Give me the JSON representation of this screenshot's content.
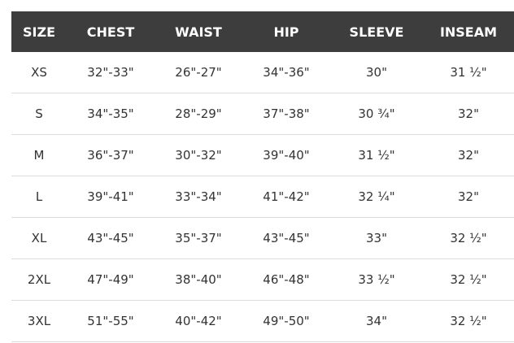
{
  "table": {
    "header": [
      "SIZE",
      "CHEST",
      "WAIST",
      "HIP",
      "SLEEVE",
      "INSEAM"
    ],
    "rows": [
      [
        "XS",
        "32\"-33\"",
        "26\"-27\"",
        "34\"-36\"",
        "30\"",
        "31 ½\""
      ],
      [
        "S",
        "34\"-35\"",
        "28\"-29\"",
        "37\"-38\"",
        "30 ¾\"",
        "32\""
      ],
      [
        "M",
        "36\"-37\"",
        "30\"-32\"",
        "39\"-40\"",
        "31 ½\"",
        "32\""
      ],
      [
        "L",
        "39\"-41\"",
        "33\"-34\"",
        "41\"-42\"",
        "32 ¼\"",
        "32\""
      ],
      [
        "XL",
        "43\"-45\"",
        "35\"-37\"",
        "43\"-45\"",
        "33\"",
        "32 ½\""
      ],
      [
        "2XL",
        "47\"-49\"",
        "38\"-40\"",
        "46\"-48\"",
        "33 ½\"",
        "32 ½\""
      ],
      [
        "3XL",
        "51\"-55\"",
        "40\"-42\"",
        "49\"-50\"",
        "34\"",
        "32 ½\""
      ]
    ]
  }
}
